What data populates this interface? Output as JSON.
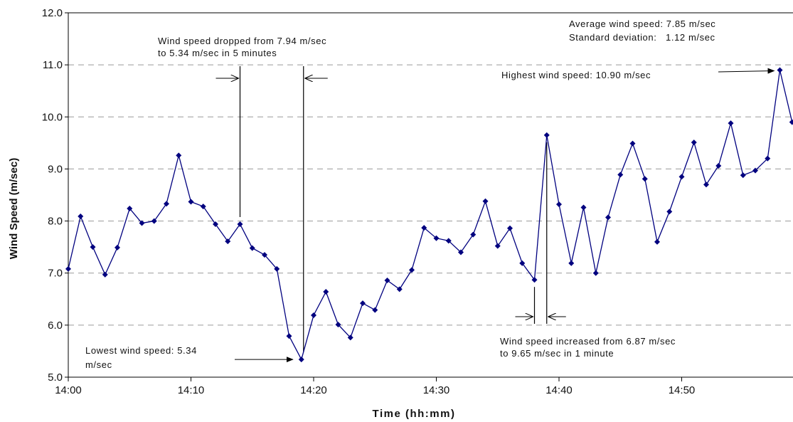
{
  "chart_data": {
    "type": "line",
    "xlabel": "Time (hh:mm)",
    "ylabel": "Wind Speed (m/sec)",
    "ylim": [
      5.0,
      12.0
    ],
    "xlim": [
      "14:00",
      "14:59"
    ],
    "yticks": [
      "5.0",
      "6.0",
      "7.0",
      "8.0",
      "9.0",
      "10.0",
      "11.0",
      "12.0"
    ],
    "xticks": [
      "14:00",
      "14:10",
      "14:20",
      "14:30",
      "14:40",
      "14:50"
    ],
    "grid": "horizontal dashed",
    "series": [
      {
        "color": "#00007f",
        "marker": "diamond",
        "x": [
          "14:00",
          "14:01",
          "14:02",
          "14:03",
          "14:04",
          "14:05",
          "14:06",
          "14:07",
          "14:08",
          "14:09",
          "14:10",
          "14:11",
          "14:12",
          "14:13",
          "14:14",
          "14:15",
          "14:16",
          "14:17",
          "14:18",
          "14:19",
          "14:20",
          "14:21",
          "14:22",
          "14:23",
          "14:24",
          "14:25",
          "14:26",
          "14:27",
          "14:28",
          "14:29",
          "14:30",
          "14:31",
          "14:32",
          "14:33",
          "14:34",
          "14:35",
          "14:36",
          "14:37",
          "14:38",
          "14:39",
          "14:40",
          "14:41",
          "14:42",
          "14:43",
          "14:44",
          "14:45",
          "14:46",
          "14:47",
          "14:48",
          "14:49",
          "14:50",
          "14:51",
          "14:52",
          "14:53",
          "14:54",
          "14:55",
          "14:56",
          "14:57",
          "14:58",
          "14:59"
        ],
        "values": [
          7.08,
          8.09,
          7.5,
          6.97,
          7.49,
          8.24,
          7.96,
          8.0,
          8.33,
          9.26,
          8.37,
          8.28,
          7.94,
          7.61,
          7.94,
          7.48,
          7.35,
          7.08,
          5.79,
          5.34,
          6.19,
          6.64,
          6.01,
          5.76,
          6.42,
          6.29,
          6.86,
          6.69,
          7.06,
          7.87,
          7.67,
          7.62,
          7.4,
          7.74,
          8.38,
          7.52,
          7.86,
          7.19,
          6.87,
          9.65,
          8.32,
          7.19,
          8.26,
          7.0,
          8.07,
          8.89,
          9.49,
          8.81,
          7.6,
          8.18,
          8.85,
          9.51,
          8.7,
          9.06,
          9.88,
          8.88,
          8.97,
          9.2,
          10.9,
          9.9
        ]
      }
    ],
    "annotations": {
      "stats_line1": "Average wind speed: 7.85 m/sec",
      "stats_line2": "Standard deviation:   1.12 m/sec",
      "highest": "Highest wind speed: 10.90 m/sec",
      "drop_line1": "Wind speed dropped from 7.94 m/sec",
      "drop_line2": "to 5.34 m/sec in 5 minutes",
      "lowest_line1": "Lowest wind speed: 5.34",
      "lowest_line2": "m/sec",
      "increase_line1": "Wind speed increased from 6.87 m/sec",
      "increase_line2": "to 9.65 m/sec in 1 minute"
    }
  }
}
